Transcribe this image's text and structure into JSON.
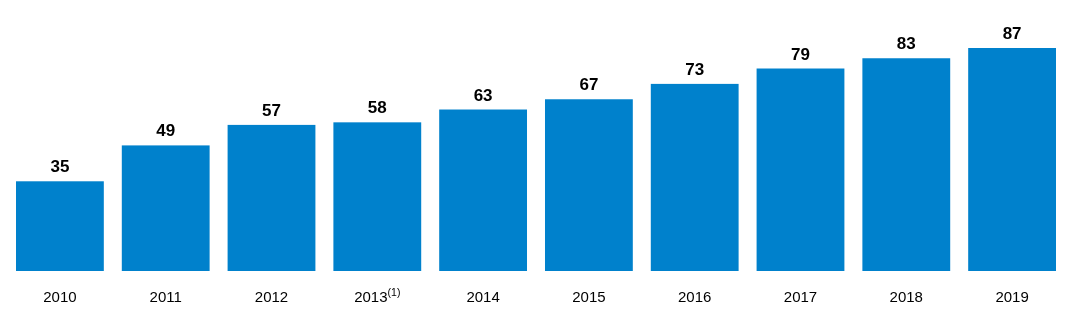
{
  "chart_data": {
    "type": "bar",
    "categories": [
      "2010",
      "2011",
      "2012",
      "2013$^{(1)}$",
      "2014",
      "2015",
      "2016",
      "2017",
      "2018",
      "2019"
    ],
    "values": [
      35,
      49,
      57,
      58,
      63,
      67,
      73,
      79,
      83,
      87
    ],
    "color": "#0081cc",
    "data_labels": true,
    "tick_labels": "x"
  }
}
